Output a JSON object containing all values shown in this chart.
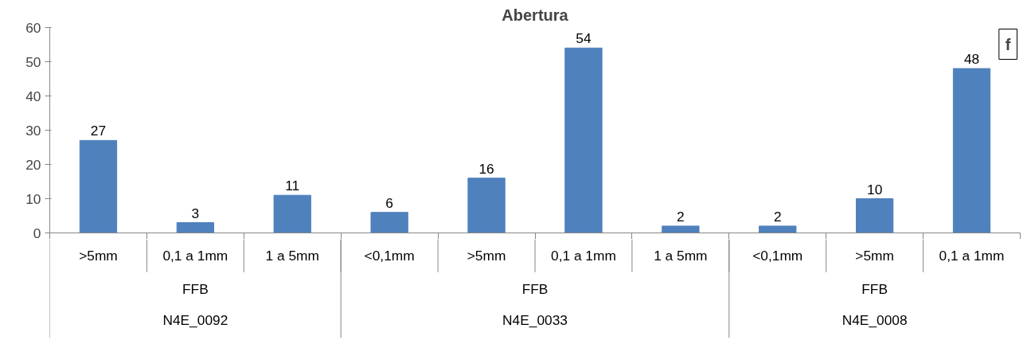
{
  "chart_data": {
    "type": "bar",
    "title": "Abertura",
    "categories": [
      ">5mm",
      "0,1 a 1mm",
      "1 a 5mm",
      "<0,1mm",
      ">5mm",
      "0,1 a 1mm",
      "1 a 5mm",
      "<0,1mm",
      ">5mm",
      "0,1 a 1mm"
    ],
    "values": [
      27,
      3,
      11,
      6,
      16,
      54,
      2,
      2,
      10,
      48
    ],
    "color": "#4f81bd",
    "ylim": [
      0,
      60
    ],
    "yticks": [
      0,
      10,
      20,
      30,
      40,
      50,
      60
    ],
    "grid": false,
    "data_labels": true,
    "annotations": [
      "FFB",
      "N4E_0092",
      "FFB",
      "N4E_0033",
      "FFB",
      "N4E_0008",
      "f"
    ]
  }
}
